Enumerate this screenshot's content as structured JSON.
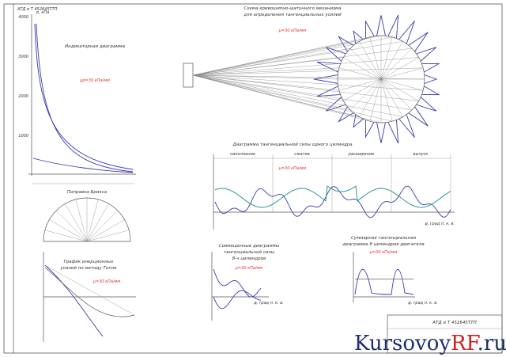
{
  "stamp_top": "АТД и Т 452645ТТП",
  "indicator": {
    "title": "Индикаторная диаграмма",
    "scale": "μp=30 кПа/мм",
    "y_label": "p, кПа",
    "yticks": [
      "4000",
      "3000",
      "2000",
      "1000"
    ]
  },
  "brix": {
    "title": "Поправка Брикса"
  },
  "inertia": {
    "title_lines": [
      "График инерционных",
      "усилий по методу Толле"
    ],
    "scale": "μ=30 кПа/мм"
  },
  "mechanism": {
    "title_lines": [
      "Схема кривошипно-шатунного механизма",
      "для определения тангенциальных усилий"
    ],
    "scale": "μ=30 кПа/мм"
  },
  "tangential": {
    "title": "Диаграмма тангенциальной силы одного цилиндра",
    "scale": "μ=30 кПа/мм",
    "phases": [
      "наполнение",
      "сжатие",
      "расширение",
      "выпуск"
    ],
    "x_label": "φ, град п. к. в."
  },
  "combined": {
    "title_lines": [
      "Совмещенные диаграммы",
      "тангенциальной силы",
      "8-ч цилиндров"
    ],
    "scale": "μ=30 кПа/мм",
    "x_label": "φ, град п. к. в."
  },
  "total": {
    "title_lines": [
      "Суммарная тангенциальная",
      "диаграмма 8 цилиндров двигателя"
    ],
    "scale": "μ=30 кПа/мм",
    "x_label": "φ, град п. к. в."
  },
  "stamp": "АТД и Т 452645ТТП",
  "watermark": {
    "brand": "Kursovoy",
    "accent": "RF",
    "domain": ".ru"
  }
}
